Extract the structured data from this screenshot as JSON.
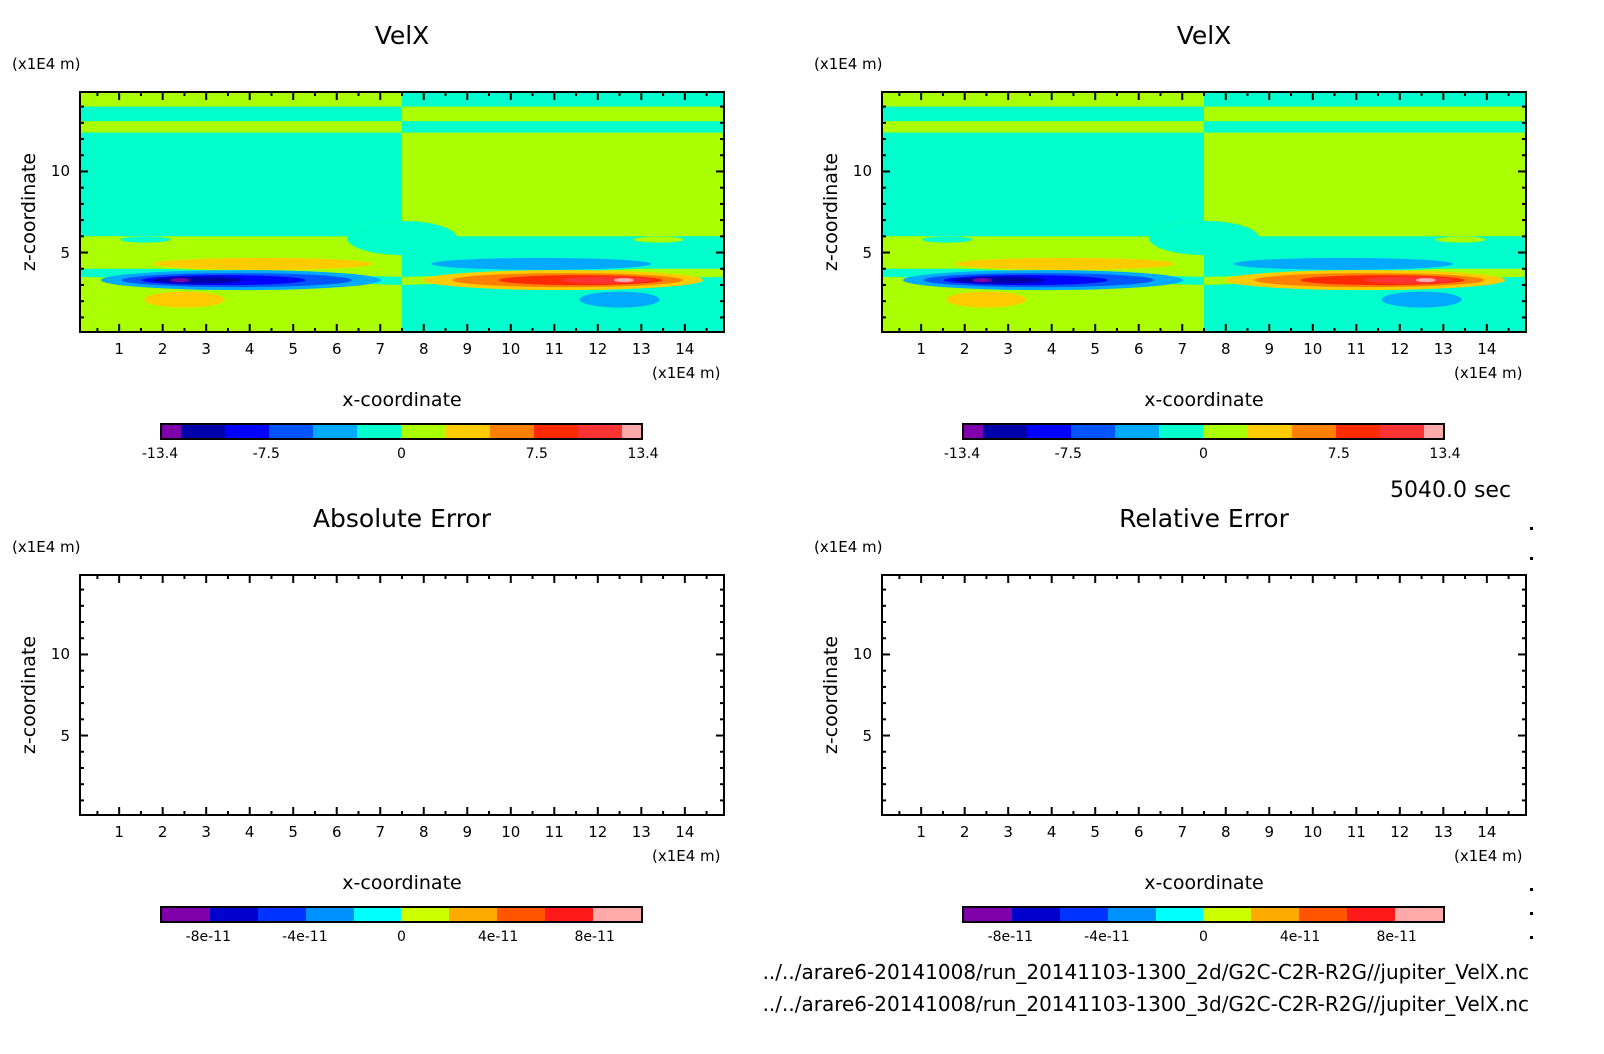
{
  "annotations": {
    "time_label": "5040.0 sec",
    "file_paths": [
      "../../arare6-20141008/run_20141103-1300_2d/G2C-C2R-R2G//jupiter_VelX.nc",
      "../../arare6-20141008/run_20141103-1300_3d/G2C-C2R-R2G//jupiter_VelX.nc"
    ]
  },
  "colormaps": {
    "velx": [
      "#7f00aa",
      "#0000aa",
      "#0000ff",
      "#0055ff",
      "#00aaff",
      "#00ffcc",
      "#aaff00",
      "#ffcc00",
      "#ff7f00",
      "#ff2a00",
      "#ff3333",
      "#ffaaaa"
    ],
    "error": [
      "#7f00aa",
      "#0000cc",
      "#0033ff",
      "#0090ff",
      "#00ffff",
      "#ccff00",
      "#ffaa00",
      "#ff5500",
      "#ff1a1a",
      "#ffaaaa"
    ]
  },
  "chart_data": [
    {
      "type": "heatmap",
      "title": "VelX",
      "xlabel": "x-coordinate",
      "ylabel": "z-coordinate",
      "x_unit": "(x1E4 m)",
      "y_unit": "(x1E4 m)",
      "xlim": [
        0.1,
        14.9
      ],
      "ylim": [
        0.1,
        14.9
      ],
      "x_ticks": [
        "1",
        "2",
        "3",
        "4",
        "5",
        "6",
        "7",
        "8",
        "9",
        "10",
        "11",
        "12",
        "13",
        "14"
      ],
      "y_ticks": [
        "5",
        "10"
      ],
      "colorbar": {
        "levels": [
          -13.4,
          13.4
        ],
        "tick_labels": [
          "-13.4",
          "-7.5",
          "0",
          "7.5",
          "13.4"
        ],
        "colormap": "velx"
      },
      "field": "antisymmetric_dipole"
    },
    {
      "type": "heatmap",
      "title": "VelX",
      "xlabel": "x-coordinate",
      "ylabel": "z-coordinate",
      "x_unit": "(x1E4 m)",
      "y_unit": "(x1E4 m)",
      "xlim": [
        0.1,
        14.9
      ],
      "ylim": [
        0.1,
        14.9
      ],
      "x_ticks": [
        "1",
        "2",
        "3",
        "4",
        "5",
        "6",
        "7",
        "8",
        "9",
        "10",
        "11",
        "12",
        "13",
        "14"
      ],
      "y_ticks": [
        "5",
        "10"
      ],
      "colorbar": {
        "levels": [
          -13.4,
          13.4
        ],
        "tick_labels": [
          "-13.4",
          "-7.5",
          "0",
          "7.5",
          "13.4"
        ],
        "colormap": "velx"
      },
      "field": "antisymmetric_dipole"
    },
    {
      "type": "heatmap",
      "title": "Absolute Error",
      "xlabel": "x-coordinate",
      "ylabel": "z-coordinate",
      "x_unit": "(x1E4 m)",
      "y_unit": "(x1E4 m)",
      "xlim": [
        0.1,
        14.9
      ],
      "ylim": [
        0.1,
        14.9
      ],
      "x_ticks": [
        "1",
        "2",
        "3",
        "4",
        "5",
        "6",
        "7",
        "8",
        "9",
        "10",
        "11",
        "12",
        "13",
        "14"
      ],
      "y_ticks": [
        "5",
        "10"
      ],
      "colorbar": {
        "levels": [
          -1e-10,
          1e-10
        ],
        "tick_labels": [
          "-8e-11",
          "-4e-11",
          "0",
          "4e-11",
          "8e-11"
        ],
        "colormap": "error"
      },
      "field": "empty"
    },
    {
      "type": "heatmap",
      "title": "Relative Error",
      "xlabel": "x-coordinate",
      "ylabel": "z-coordinate",
      "x_unit": "(x1E4 m)",
      "y_unit": "(x1E4 m)",
      "xlim": [
        0.1,
        14.9
      ],
      "ylim": [
        0.1,
        14.9
      ],
      "x_ticks": [
        "1",
        "2",
        "3",
        "4",
        "5",
        "6",
        "7",
        "8",
        "9",
        "10",
        "11",
        "12",
        "13",
        "14"
      ],
      "y_ticks": [
        "5",
        "10"
      ],
      "colorbar": {
        "levels": [
          -1e-10,
          1e-10
        ],
        "tick_labels": [
          "-8e-11",
          "-4e-11",
          "0",
          "4e-11",
          "8e-11"
        ],
        "colormap": "error"
      },
      "field": "empty"
    }
  ]
}
